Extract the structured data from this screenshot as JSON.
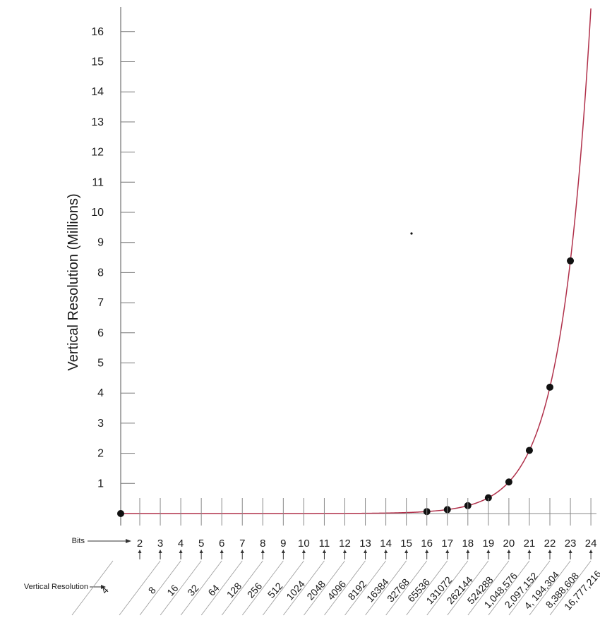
{
  "chart_data": {
    "type": "line",
    "ylabel": "Vertical Resolution (Millions)",
    "ylim": [
      0,
      16.5
    ],
    "yticks": [
      "1",
      "2",
      "3",
      "4",
      "5",
      "6",
      "7",
      "8",
      "9",
      "10",
      "11",
      "12",
      "13",
      "14",
      "15",
      "16"
    ],
    "bits_row_label": "Bits",
    "resolution_row_label": "Vertical Resolution",
    "bits": [
      "2",
      "3",
      "4",
      "5",
      "6",
      "7",
      "8",
      "9",
      "10",
      "11",
      "12",
      "13",
      "14",
      "15",
      "16",
      "17",
      "18",
      "19",
      "20",
      "21",
      "22",
      "23",
      "24"
    ],
    "resolutions": [
      "4",
      "8",
      "16",
      "32",
      "64",
      "128",
      "256",
      "512",
      "1024",
      "2048",
      "4096",
      "8192",
      "16384",
      "32768",
      "65536",
      "131072",
      "262144",
      "524288",
      "1,048,576",
      "2,097,152",
      "4, 194,304",
      "8,388,608",
      "16,777,216"
    ],
    "series": [
      {
        "x": [
          2,
          16,
          17,
          18,
          19,
          20,
          21,
          22,
          23
        ],
        "y": [
          0,
          0.065536,
          0.131072,
          0.262144,
          0.524288,
          1.048576,
          2.097152,
          4.194304,
          8.388608
        ]
      }
    ],
    "curve_color": "#b0304a",
    "point_color": "#111111",
    "grid": false
  }
}
